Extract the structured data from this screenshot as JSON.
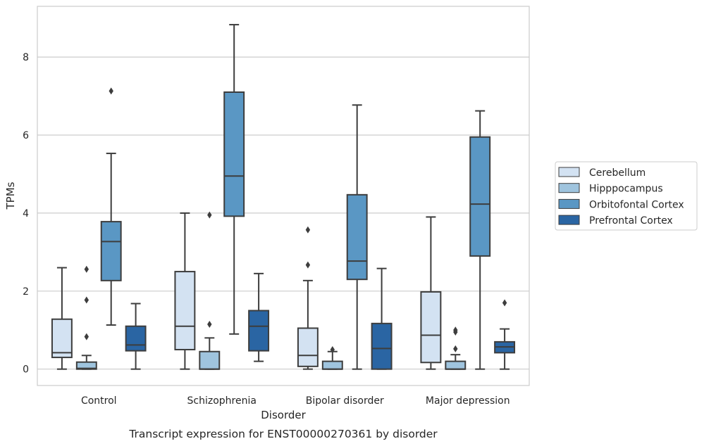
{
  "chart_data": {
    "type": "box",
    "xlabel": "Disorder",
    "ylabel": "TPMs",
    "caption": "Transcript expression for ENST00000270361 by disorder",
    "categories": [
      "Control",
      "Schizophrenia",
      "Bipolar disorder",
      "Major depression"
    ],
    "ylim": [
      -0.42,
      9.3
    ],
    "yticks": [
      0,
      2,
      4,
      6,
      8
    ],
    "grid": "horizontal",
    "legend_position": "right",
    "series": [
      {
        "name": "Cerebellum",
        "color": "#d3e2f2",
        "boxes": [
          {
            "min": 0.0,
            "q1": 0.3,
            "median": 0.42,
            "q3": 1.28,
            "max": 2.6,
            "outliers": []
          },
          {
            "min": 0.0,
            "q1": 0.5,
            "median": 1.1,
            "q3": 2.5,
            "max": 4.0,
            "outliers": []
          },
          {
            "min": 0.0,
            "q1": 0.07,
            "median": 0.35,
            "q3": 1.05,
            "max": 2.27,
            "outliers": [
              2.67,
              3.57
            ]
          },
          {
            "min": 0.0,
            "q1": 0.17,
            "median": 0.87,
            "q3": 1.98,
            "max": 3.9,
            "outliers": []
          }
        ]
      },
      {
        "name": "Hipppocampus",
        "color": "#9fc4de",
        "boxes": [
          {
            "min": 0.0,
            "q1": 0.0,
            "median": 0.02,
            "q3": 0.18,
            "max": 0.35,
            "outliers": [
              0.83,
              1.77,
              2.56
            ]
          },
          {
            "min": 0.0,
            "q1": 0.0,
            "median": 0.0,
            "q3": 0.45,
            "max": 0.8,
            "outliers": [
              1.15,
              3.95
            ]
          },
          {
            "min": 0.0,
            "q1": 0.0,
            "median": 0.0,
            "q3": 0.2,
            "max": 0.45,
            "outliers": [
              0.5
            ]
          },
          {
            "min": 0.0,
            "q1": 0.0,
            "median": 0.0,
            "q3": 0.2,
            "max": 0.37,
            "outliers": [
              0.52,
              0.95,
              1.0
            ]
          }
        ]
      },
      {
        "name": "Orbitofontal Cortex",
        "color": "#5a97c4",
        "boxes": [
          {
            "min": 1.13,
            "q1": 2.27,
            "median": 3.27,
            "q3": 3.78,
            "max": 5.53,
            "outliers": [
              7.13
            ]
          },
          {
            "min": 0.9,
            "q1": 3.92,
            "median": 4.95,
            "q3": 7.1,
            "max": 8.83,
            "outliers": []
          },
          {
            "min": 0.0,
            "q1": 2.3,
            "median": 2.77,
            "q3": 4.47,
            "max": 6.77,
            "outliers": []
          },
          {
            "min": 0.0,
            "q1": 2.9,
            "median": 4.23,
            "q3": 5.95,
            "max": 6.62,
            "outliers": []
          }
        ]
      },
      {
        "name": "Prefrontal Cortex",
        "color": "#2a65a3",
        "boxes": [
          {
            "min": 0.0,
            "q1": 0.47,
            "median": 0.62,
            "q3": 1.1,
            "max": 1.68,
            "outliers": []
          },
          {
            "min": 0.2,
            "q1": 0.47,
            "median": 1.1,
            "q3": 1.5,
            "max": 2.45,
            "outliers": []
          },
          {
            "min": 0.0,
            "q1": 0.0,
            "median": 0.53,
            "q3": 1.17,
            "max": 2.58,
            "outliers": []
          },
          {
            "min": 0.0,
            "q1": 0.42,
            "median": 0.57,
            "q3": 0.7,
            "max": 1.03,
            "outliers": [
              1.7
            ]
          }
        ]
      }
    ]
  }
}
